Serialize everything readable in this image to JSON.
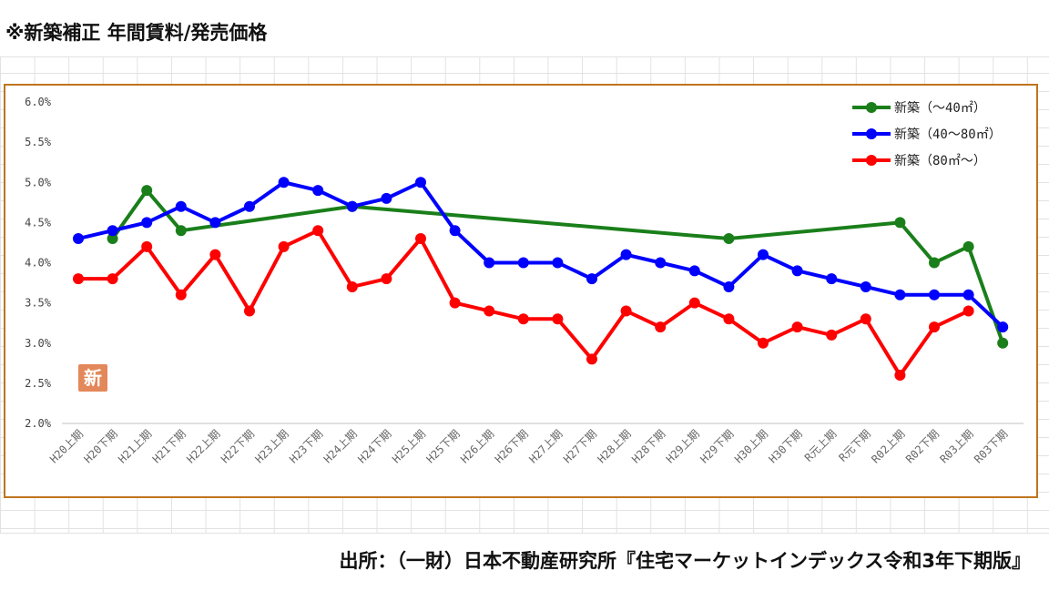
{
  "heading": "※新築補正 年間賃料/発売価格",
  "source": "出所：（一財）日本不動産研究所『住宅マーケットインデックス令和3年下期版』",
  "chart_data": {
    "type": "line",
    "categories": [
      "H20上期",
      "H20下期",
      "H21上期",
      "H21下期",
      "H22上期",
      "H22下期",
      "H23上期",
      "H23下期",
      "H24上期",
      "H24下期",
      "H25上期",
      "H25下期",
      "H26上期",
      "H26下期",
      "H27上期",
      "H27下期",
      "H28上期",
      "H28下期",
      "H29上期",
      "H29下期",
      "H30上期",
      "H30下期",
      "R元上期",
      "R元下期",
      "R02上期",
      "R02下期",
      "R03上期",
      "R03下期"
    ],
    "y_ticks": [
      "6.0%",
      "5.5%",
      "5.0%",
      "4.5%",
      "4.0%",
      "3.5%",
      "3.0%",
      "2.5%",
      "2.0%"
    ],
    "ylim": [
      2.0,
      6.0
    ],
    "series": [
      {
        "name": "新築（～40㎡）",
        "color": "#1a7f1a",
        "points": [
          [
            1,
            4.3
          ],
          [
            2,
            4.9
          ],
          [
            3,
            4.4
          ],
          [
            8,
            4.7
          ],
          [
            19,
            4.3
          ],
          [
            24,
            4.5
          ],
          [
            25,
            4.0
          ],
          [
            26,
            4.2
          ],
          [
            27,
            3.0
          ]
        ]
      },
      {
        "name": "新築（40～80㎡）",
        "color": "#0000ff",
        "points": [
          [
            0,
            4.3
          ],
          [
            1,
            4.4
          ],
          [
            2,
            4.5
          ],
          [
            3,
            4.7
          ],
          [
            4,
            4.5
          ],
          [
            5,
            4.7
          ],
          [
            6,
            5.0
          ],
          [
            7,
            4.9
          ],
          [
            8,
            4.7
          ],
          [
            9,
            4.8
          ],
          [
            10,
            5.0
          ],
          [
            11,
            4.4
          ],
          [
            12,
            4.0
          ],
          [
            13,
            4.0
          ],
          [
            14,
            4.0
          ],
          [
            15,
            3.8
          ],
          [
            16,
            4.1
          ],
          [
            17,
            4.0
          ],
          [
            18,
            3.9
          ],
          [
            19,
            3.7
          ],
          [
            20,
            4.1
          ],
          [
            21,
            3.9
          ],
          [
            22,
            3.8
          ],
          [
            23,
            3.7
          ],
          [
            24,
            3.6
          ],
          [
            25,
            3.6
          ],
          [
            26,
            3.6
          ],
          [
            27,
            3.2
          ]
        ]
      },
      {
        "name": "新築（80㎡～）",
        "color": "#ff0000",
        "points": [
          [
            0,
            3.8
          ],
          [
            1,
            3.8
          ],
          [
            2,
            4.2
          ],
          [
            3,
            3.6
          ],
          [
            4,
            4.1
          ],
          [
            5,
            3.4
          ],
          [
            6,
            4.2
          ],
          [
            7,
            4.4
          ],
          [
            8,
            3.7
          ],
          [
            9,
            3.8
          ],
          [
            10,
            4.3
          ],
          [
            11,
            3.5
          ],
          [
            12,
            3.4
          ],
          [
            13,
            3.3
          ],
          [
            14,
            3.3
          ],
          [
            15,
            2.8
          ],
          [
            16,
            3.4
          ],
          [
            17,
            3.2
          ],
          [
            18,
            3.5
          ],
          [
            19,
            3.3
          ],
          [
            20,
            3.0
          ],
          [
            21,
            3.2
          ],
          [
            22,
            3.1
          ],
          [
            23,
            3.3
          ],
          [
            24,
            2.6
          ],
          [
            25,
            3.2
          ],
          [
            26,
            3.4
          ]
        ]
      }
    ],
    "legend_position": "top-right",
    "badge": {
      "text": "新",
      "color": "#e3885a"
    },
    "grid": false
  }
}
